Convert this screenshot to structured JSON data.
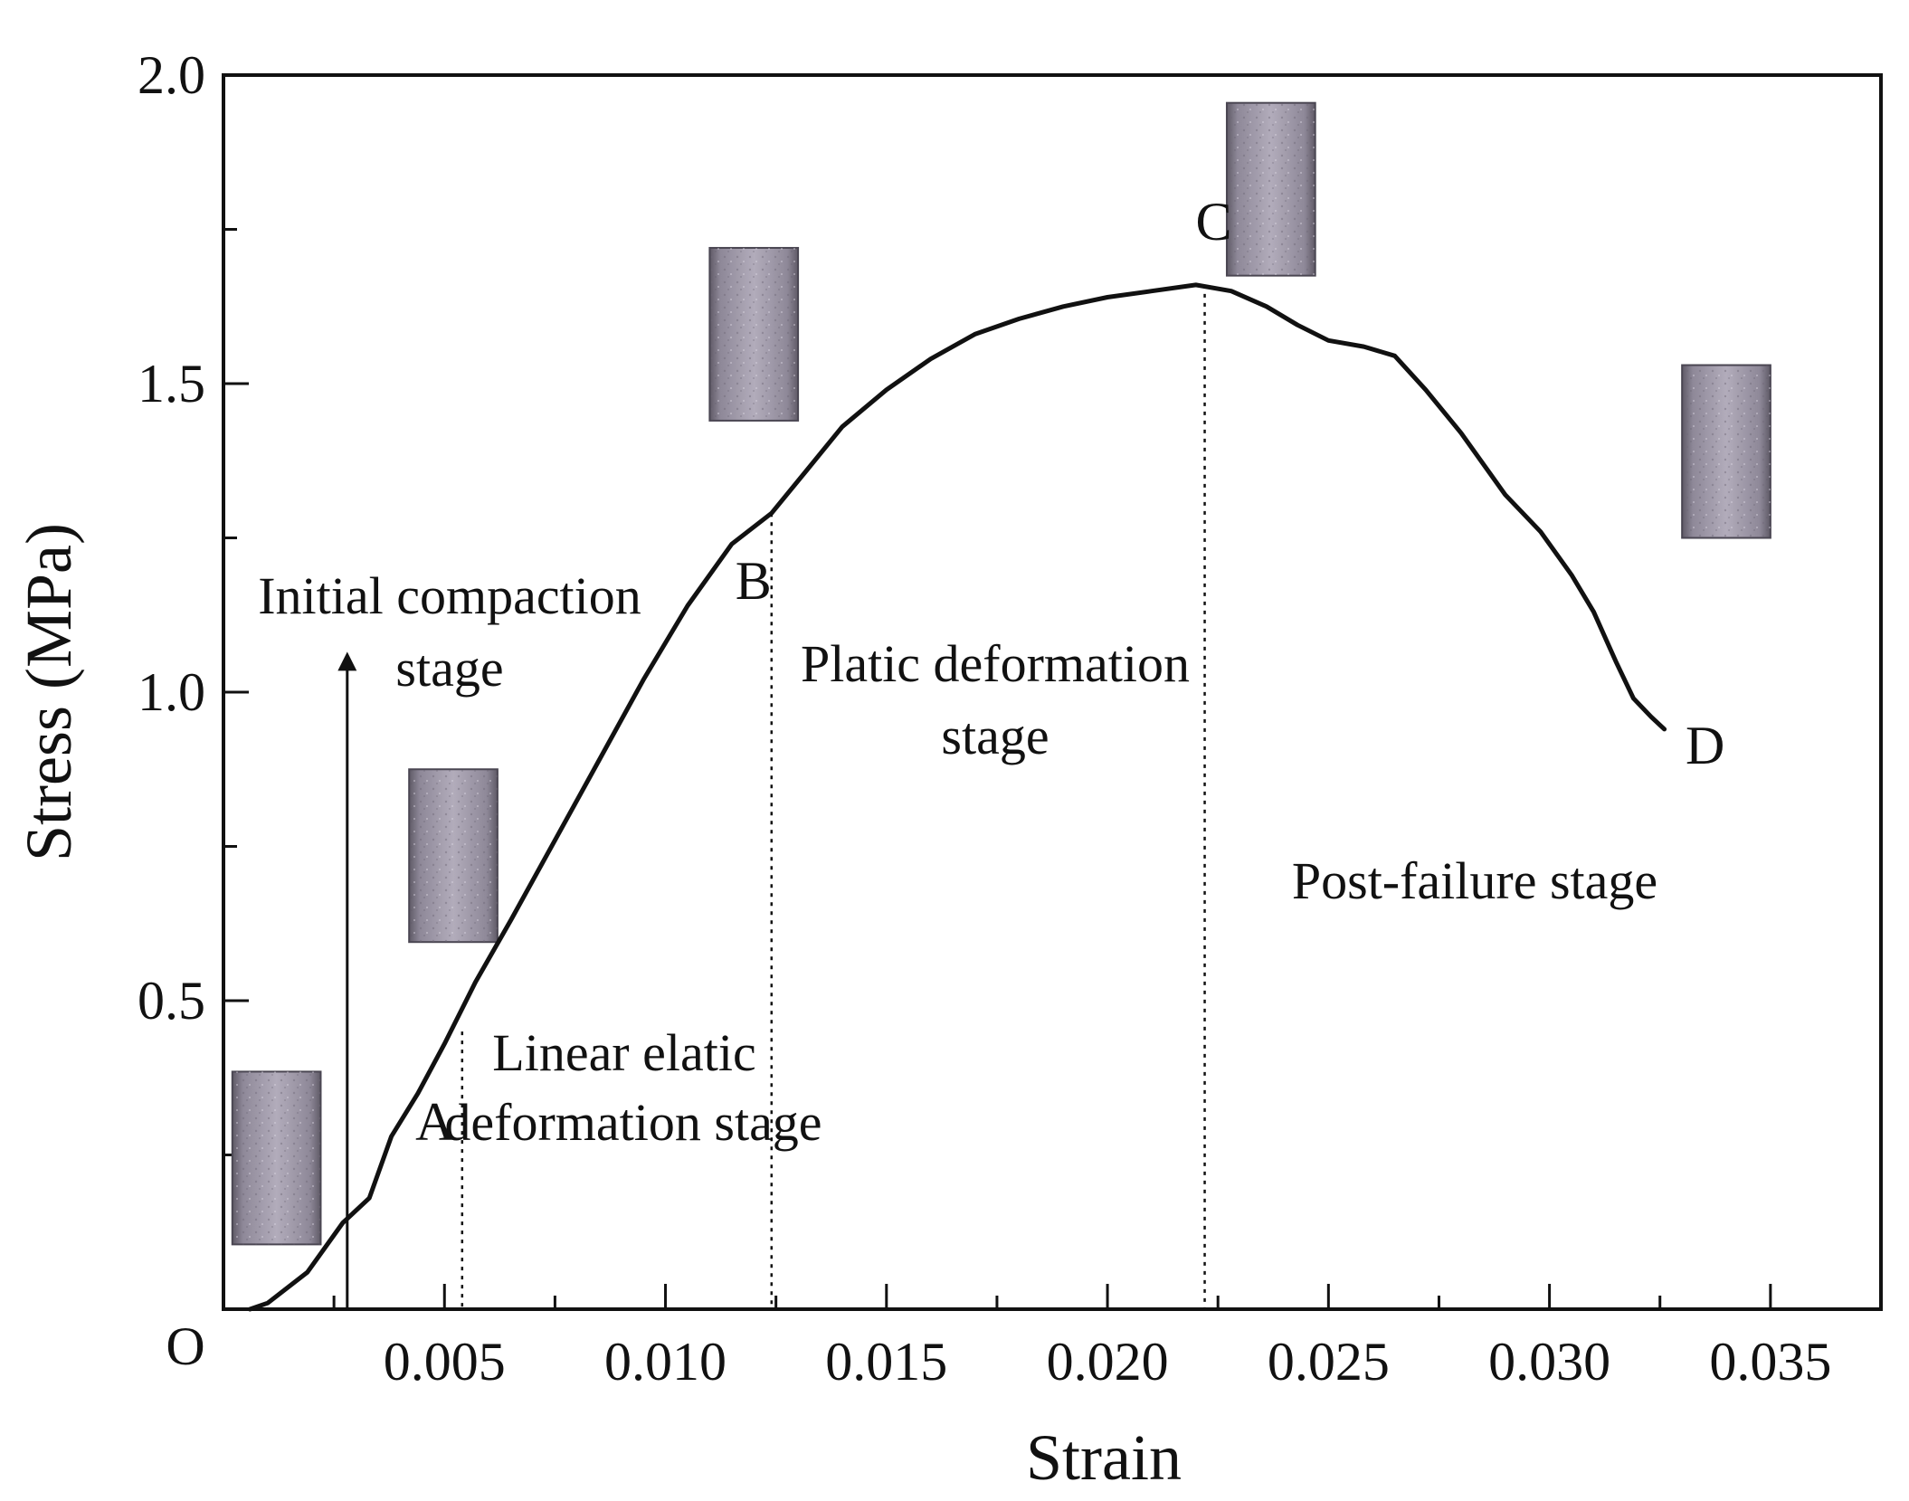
{
  "chart_data": {
    "type": "line",
    "xlabel": "Strain",
    "ylabel": "Stress (MPa)",
    "xlim": [
      0,
      0.0375
    ],
    "ylim": [
      0,
      2.0
    ],
    "origin_label": "O",
    "x_ticks": [
      0.005,
      0.01,
      0.015,
      0.02,
      0.025,
      0.03,
      0.035
    ],
    "x_tick_labels": [
      "0.005",
      "0.010",
      "0.015",
      "0.020",
      "0.025",
      "0.030",
      "0.035"
    ],
    "y_ticks": [
      0.5,
      1.0,
      1.5,
      2.0
    ],
    "y_tick_labels": [
      "0.5",
      "1.0",
      "1.5",
      "2.0"
    ],
    "grid": false,
    "series": [
      {
        "x": [
          0.0006,
          0.001,
          0.0019,
          0.0027,
          0.0033,
          0.0038,
          0.0044,
          0.005,
          0.0057,
          0.0065,
          0.0075,
          0.0085,
          0.0095,
          0.0105,
          0.0115,
          0.0124,
          0.0132,
          0.014,
          0.015,
          0.016,
          0.017,
          0.018,
          0.019,
          0.02,
          0.021,
          0.022,
          0.0228,
          0.0236,
          0.0243,
          0.025,
          0.0258,
          0.0265,
          0.0272,
          0.028,
          0.029,
          0.0298,
          0.0305,
          0.031,
          0.0315,
          0.0319,
          0.0323,
          0.0326
        ],
        "y": [
          0.0,
          0.01,
          0.06,
          0.14,
          0.18,
          0.28,
          0.35,
          0.43,
          0.53,
          0.63,
          0.76,
          0.89,
          1.02,
          1.14,
          1.24,
          1.29,
          1.36,
          1.43,
          1.49,
          1.54,
          1.58,
          1.605,
          1.625,
          1.64,
          1.65,
          1.66,
          1.65,
          1.625,
          1.595,
          1.57,
          1.56,
          1.545,
          1.49,
          1.42,
          1.32,
          1.26,
          1.19,
          1.13,
          1.05,
          0.99,
          0.96,
          0.94
        ]
      }
    ],
    "points": [
      {
        "label": "A",
        "x": 0.0054,
        "y": 0.45
      },
      {
        "label": "B",
        "x": 0.0124,
        "y": 1.29
      },
      {
        "label": "C",
        "x": 0.0222,
        "y": 1.66
      },
      {
        "label": "D",
        "x": 0.0326,
        "y": 0.94
      }
    ],
    "stage_lines": [
      {
        "x": 0.0054,
        "y": 0.45
      },
      {
        "x": 0.0124,
        "y": 1.29
      },
      {
        "x": 0.0222,
        "y": 1.66
      }
    ],
    "annotations": {
      "initial_line1": "Initial compaction",
      "initial_line2": "stage",
      "linear_line1": "Linear elatic",
      "linear_line2": "deformation stage",
      "plastic_line1": "Platic deformation",
      "plastic_line2": "stage",
      "post_failure": "Post-failure stage"
    },
    "arrow": {
      "x": 0.0028,
      "y_start": 0.0,
      "y_end": 1.05
    },
    "specimens": [
      {
        "id": "O",
        "cx": 0.0012,
        "y_bottom": 0.21,
        "y_top": 0.77
      },
      {
        "id": "A",
        "cx": 0.0052,
        "y_bottom": 1.19,
        "y_top": 1.75
      },
      {
        "id": "B",
        "cx": 0.012,
        "y_bottom": 2.88,
        "y_top": 3.44
      },
      {
        "id": "C",
        "cx": 0.0237,
        "y_bottom": 3.35,
        "y_top": 3.91
      },
      {
        "id": "D",
        "cx": 0.034,
        "y_bottom": 2.5,
        "y_top": 3.06
      }
    ]
  }
}
